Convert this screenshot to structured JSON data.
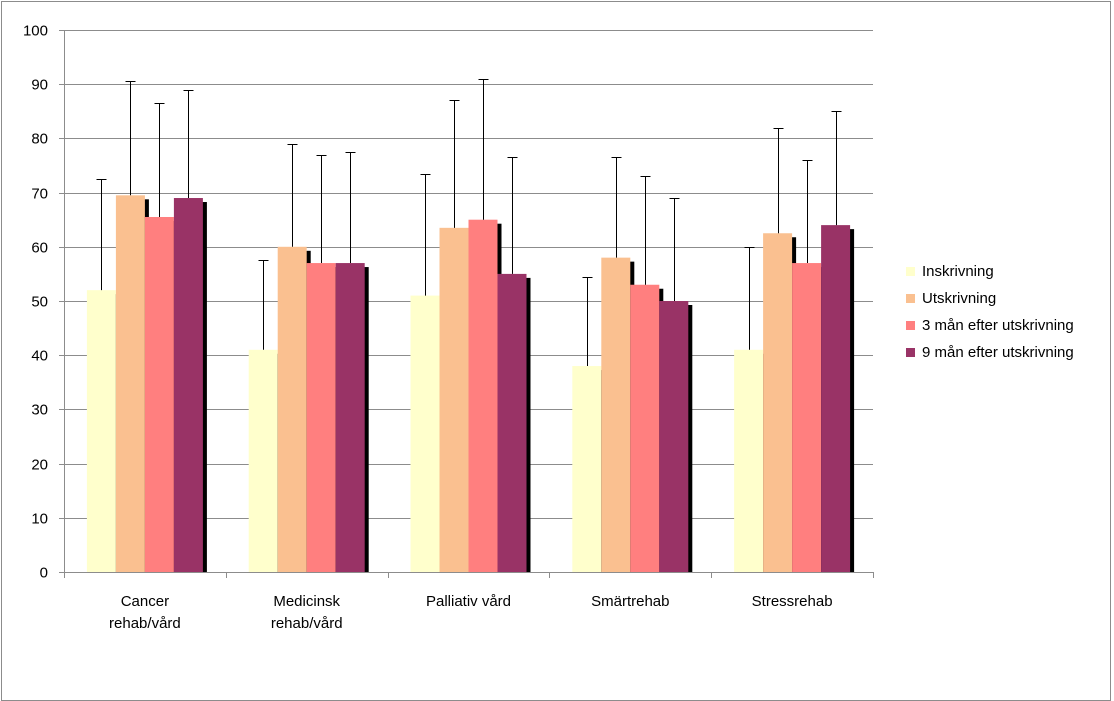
{
  "chart_data": {
    "type": "bar",
    "title": "",
    "xlabel": "",
    "ylabel": "",
    "ylim": [
      0,
      100
    ],
    "yticks": [
      0,
      10,
      20,
      30,
      40,
      50,
      60,
      70,
      80,
      90,
      100
    ],
    "grid": true,
    "legend_position": "right",
    "categories": [
      [
        "Cancer",
        "rehab/vård"
      ],
      [
        "Medicinsk",
        "rehab/vård"
      ],
      [
        "Palliativ vård"
      ],
      [
        "Smärtrehab"
      ],
      [
        "Stressrehab"
      ]
    ],
    "series": [
      {
        "name": "Inskrivning",
        "color": "#ffffcc",
        "values": [
          52,
          41,
          51,
          38,
          41
        ],
        "error_top": [
          72.5,
          57.5,
          73.5,
          54.5,
          60
        ]
      },
      {
        "name": "Utskrivning",
        "color": "#fac090",
        "values": [
          69.5,
          60,
          63.5,
          58,
          62.5
        ],
        "error_top": [
          90.5,
          79,
          87,
          76.5,
          82
        ]
      },
      {
        "name": "3 mån efter utskrivning",
        "color": "#ff7f7f",
        "values": [
          65.5,
          57,
          65,
          53,
          57
        ],
        "error_top": [
          86.5,
          77,
          91,
          73,
          76
        ]
      },
      {
        "name": "9 mån efter utskrivning",
        "color": "#993366",
        "values": [
          69,
          57,
          55,
          50,
          64
        ],
        "error_top": [
          89,
          77.5,
          76.5,
          69,
          85
        ]
      }
    ]
  }
}
